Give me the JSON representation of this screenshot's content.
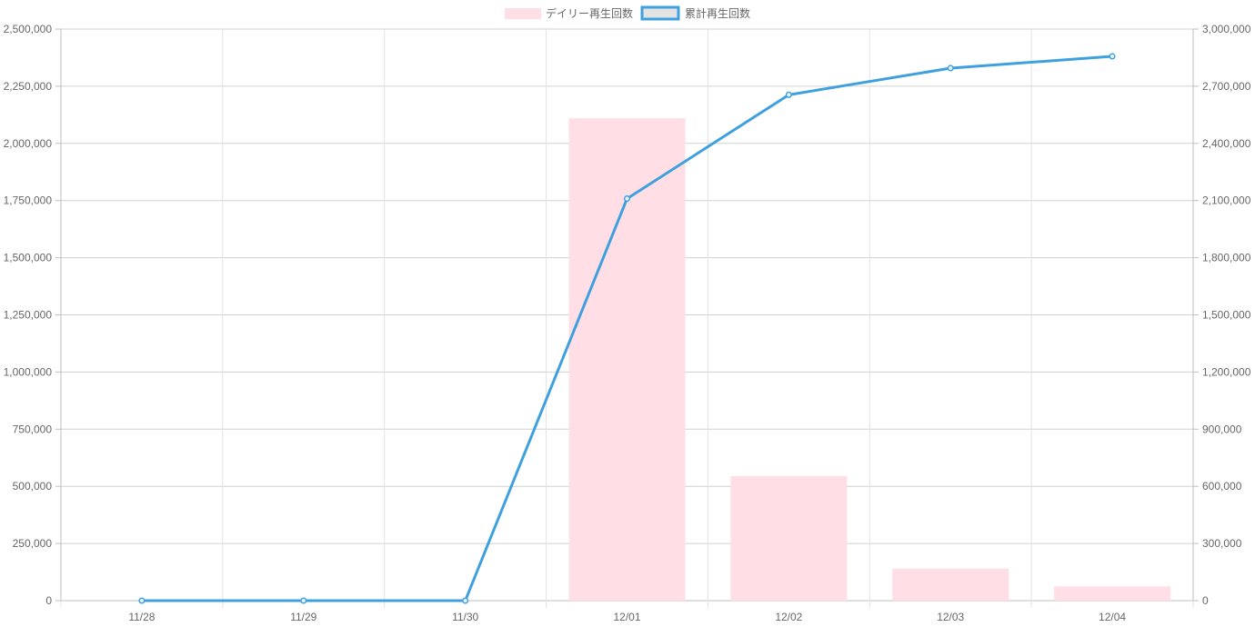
{
  "chart_data": {
    "type": "bar",
    "categories": [
      "11/28",
      "11/29",
      "11/30",
      "12/01",
      "12/02",
      "12/03",
      "12/04"
    ],
    "series": [
      {
        "name": "デイリー再生回数",
        "type": "bar",
        "axis": "left",
        "values": [
          0,
          0,
          0,
          2110000,
          545000,
          140000,
          62000
        ],
        "color": "#ffdfe5"
      },
      {
        "name": "累計再生回数",
        "type": "line",
        "axis": "right",
        "values": [
          0,
          0,
          0,
          2110000,
          2655000,
          2795000,
          2857000
        ],
        "color": "#3fa0e0"
      }
    ],
    "y_left": {
      "range": [
        0,
        2500000
      ],
      "ticks": [
        "0",
        "250,000",
        "500,000",
        "750,000",
        "1,000,000",
        "1,250,000",
        "1,500,000",
        "1,750,000",
        "2,000,000",
        "2,250,000",
        "2,500,000"
      ]
    },
    "y_right": {
      "range": [
        0,
        3000000
      ],
      "ticks": [
        "0",
        "300,000",
        "600,000",
        "900,000",
        "1,200,000",
        "1,500,000",
        "1,800,000",
        "2,100,000",
        "2,400,000",
        "2,700,000",
        "3,000,000"
      ]
    },
    "grid": true,
    "legend_position": "top-center",
    "title": "",
    "xlabel": "",
    "ylabel": ""
  }
}
